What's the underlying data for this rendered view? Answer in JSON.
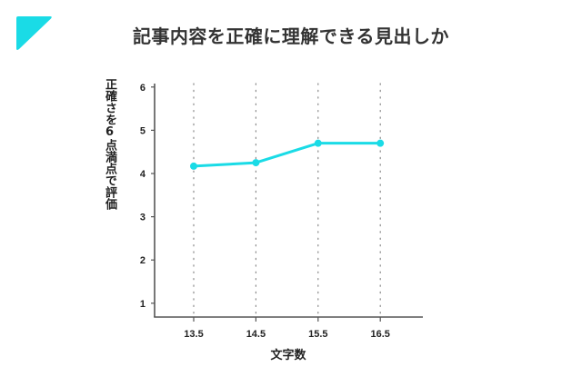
{
  "header": {
    "title": "記事内容を正確に理解できる見出しか",
    "logo_icon": "corner-triangle-icon",
    "accent_color": "#1adbe6"
  },
  "chart_data": {
    "type": "line",
    "title": "記事内容を正確に理解できる見出しか",
    "xlabel": "文字数",
    "ylabel": "正確さを6点満点で評価",
    "categories": [
      "13.5",
      "14.5",
      "15.5",
      "16.5"
    ],
    "x": [
      13.5,
      14.5,
      15.5,
      16.5
    ],
    "series": [
      {
        "name": "正確さ",
        "values": [
          4.17,
          4.25,
          4.7,
          4.7
        ],
        "color": "#1adbe6"
      }
    ],
    "yticks": [
      "1",
      "2",
      "3",
      "4",
      "5",
      "6"
    ],
    "ylim": [
      0.75,
      6
    ],
    "grid": "vertical dotted lines at x ticks",
    "legend": "none"
  }
}
